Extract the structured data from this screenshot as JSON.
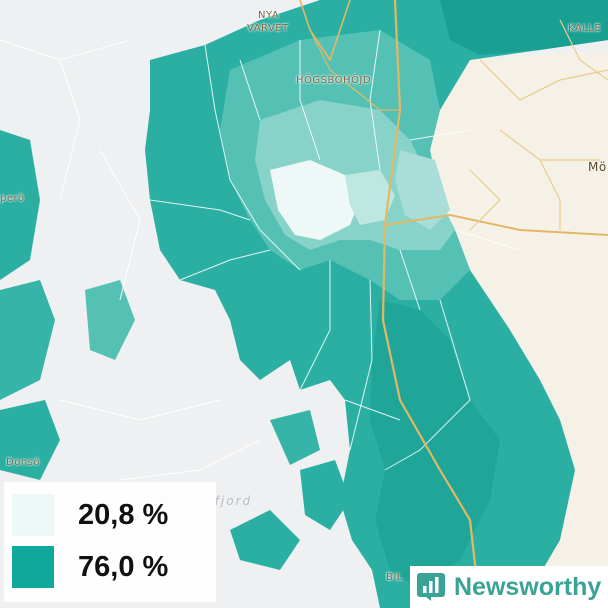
{
  "map": {
    "colors": {
      "background": "#eef0f2",
      "water": "#eef0f2",
      "land_unshaded": "#f6f1e7",
      "boundary": "#ffffff",
      "road_major": "#e2b865",
      "road_minor": "#e9cc8e",
      "water_lines": "#ffffff",
      "scale_low": "#eef9f7",
      "scale_high": "#0fa89b"
    },
    "places": {
      "nya_varvet_line1": "NYA",
      "nya_varvet_line2": "VARVET",
      "hogsbohojd": "HÖGSBOHÖJD",
      "kalle": "KALLE",
      "mo": "Mö",
      "torpero": "perö",
      "donso": "Donsö",
      "bil": "BIL"
    },
    "water_names": {
      "fjord": "Askimsfjord"
    }
  },
  "legend": {
    "items": [
      {
        "label": "20,8 %",
        "color": "#eef9f7"
      },
      {
        "label": "76,0 %",
        "color": "#0fa89b"
      }
    ]
  },
  "brand": {
    "name": "Newsworthy",
    "icon": "bar-chart-icon",
    "color": "#3aa396"
  }
}
